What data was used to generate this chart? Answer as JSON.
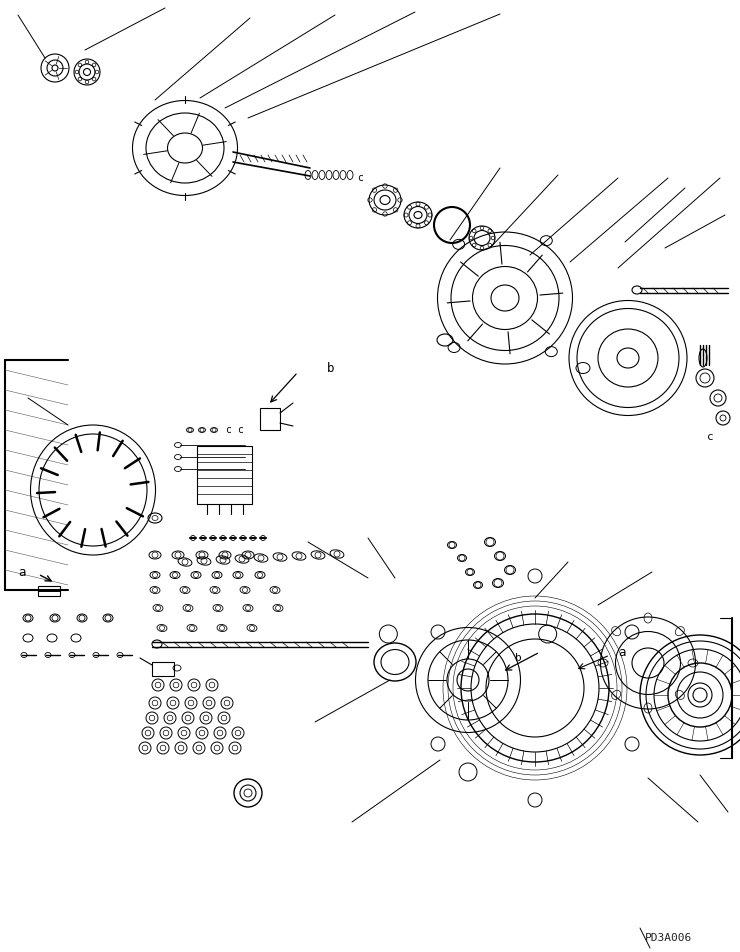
{
  "background_color": "#ffffff",
  "line_color": "#000000",
  "fig_width": 7.4,
  "fig_height": 9.52,
  "dpi": 100,
  "watermark": "PD3A006",
  "label_a": "a",
  "label_b": "b",
  "label_c": "c"
}
